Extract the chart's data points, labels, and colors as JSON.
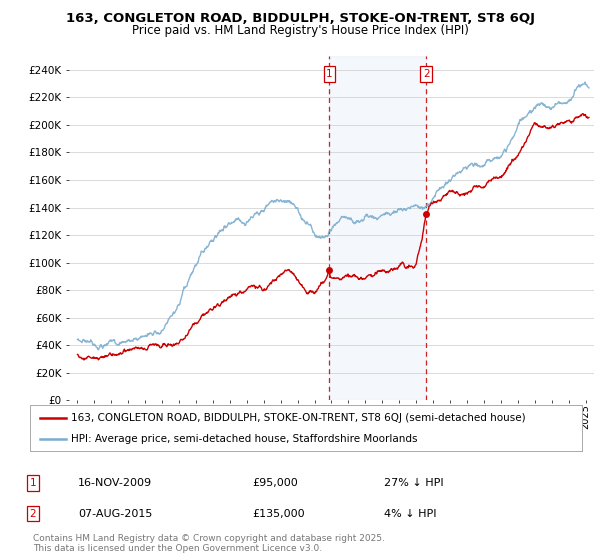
{
  "title1": "163, CONGLETON ROAD, BIDDULPH, STOKE-ON-TRENT, ST8 6QJ",
  "title2": "Price paid vs. HM Land Registry's House Price Index (HPI)",
  "legend1": "163, CONGLETON ROAD, BIDDULPH, STOKE-ON-TRENT, ST8 6QJ (semi-detached house)",
  "legend2": "HPI: Average price, semi-detached house, Staffordshire Moorlands",
  "annotation1_box": "1",
  "annotation1_date": "16-NOV-2009",
  "annotation1_price": "£95,000",
  "annotation1_hpi": "27% ↓ HPI",
  "annotation2_box": "2",
  "annotation2_date": "07-AUG-2015",
  "annotation2_price": "£135,000",
  "annotation2_hpi": "4% ↓ HPI",
  "footer": "Contains HM Land Registry data © Crown copyright and database right 2025.\nThis data is licensed under the Open Government Licence v3.0.",
  "red_color": "#cc0000",
  "blue_color": "#7aadcf",
  "vline1_x": 2009.88,
  "vline2_x": 2015.59,
  "sale1_x": 2009.88,
  "sale1_y": 95000,
  "sale2_x": 2015.59,
  "sale2_y": 135000,
  "ylim": [
    0,
    250000
  ],
  "xlim": [
    1994.5,
    2025.5
  ],
  "yticks": [
    0,
    20000,
    40000,
    60000,
    80000,
    100000,
    120000,
    140000,
    160000,
    180000,
    200000,
    220000,
    240000
  ],
  "ytick_labels": [
    "£0",
    "£20K",
    "£40K",
    "£60K",
    "£80K",
    "£100K",
    "£120K",
    "£140K",
    "£160K",
    "£180K",
    "£200K",
    "£220K",
    "£240K"
  ],
  "hpi_knots": [
    [
      1995.0,
      44000
    ],
    [
      1996.0,
      46000
    ],
    [
      1997.0,
      48000
    ],
    [
      1998.0,
      50000
    ],
    [
      1999.0,
      54000
    ],
    [
      2000.0,
      60000
    ],
    [
      2001.0,
      72000
    ],
    [
      2002.0,
      92000
    ],
    [
      2003.0,
      112000
    ],
    [
      2004.0,
      128000
    ],
    [
      2005.0,
      132000
    ],
    [
      2006.0,
      138000
    ],
    [
      2007.0,
      144000
    ],
    [
      2007.5,
      143000
    ],
    [
      2008.0,
      138000
    ],
    [
      2008.5,
      128000
    ],
    [
      2009.0,
      122000
    ],
    [
      2009.5,
      120000
    ],
    [
      2010.0,
      123000
    ],
    [
      2010.5,
      127000
    ],
    [
      2011.0,
      125000
    ],
    [
      2011.5,
      123000
    ],
    [
      2012.0,
      122000
    ],
    [
      2012.5,
      124000
    ],
    [
      2013.0,
      126000
    ],
    [
      2013.5,
      128000
    ],
    [
      2014.0,
      132000
    ],
    [
      2014.5,
      134000
    ],
    [
      2015.0,
      135000
    ],
    [
      2015.5,
      136000
    ],
    [
      2016.0,
      145000
    ],
    [
      2016.5,
      152000
    ],
    [
      2017.0,
      158000
    ],
    [
      2017.5,
      162000
    ],
    [
      2018.0,
      163000
    ],
    [
      2018.5,
      163000
    ],
    [
      2019.0,
      162000
    ],
    [
      2019.5,
      164000
    ],
    [
      2020.0,
      168000
    ],
    [
      2020.5,
      178000
    ],
    [
      2021.0,
      188000
    ],
    [
      2021.5,
      195000
    ],
    [
      2022.0,
      205000
    ],
    [
      2022.5,
      210000
    ],
    [
      2023.0,
      208000
    ],
    [
      2023.5,
      212000
    ],
    [
      2024.0,
      218000
    ],
    [
      2024.5,
      228000
    ],
    [
      2025.0,
      232000
    ]
  ],
  "prop_knots": [
    [
      1995.0,
      32000
    ],
    [
      1996.0,
      31000
    ],
    [
      1997.0,
      32000
    ],
    [
      1998.0,
      34000
    ],
    [
      1999.0,
      35000
    ],
    [
      2000.0,
      38000
    ],
    [
      2001.0,
      44000
    ],
    [
      2002.0,
      55000
    ],
    [
      2003.0,
      68000
    ],
    [
      2004.0,
      78000
    ],
    [
      2005.0,
      82000
    ],
    [
      2006.0,
      88000
    ],
    [
      2007.0,
      100000
    ],
    [
      2007.25,
      103000
    ],
    [
      2007.5,
      102000
    ],
    [
      2008.0,
      96000
    ],
    [
      2008.5,
      88000
    ],
    [
      2009.0,
      84000
    ],
    [
      2009.88,
      95000
    ],
    [
      2010.0,
      90000
    ],
    [
      2010.5,
      88000
    ],
    [
      2011.0,
      87000
    ],
    [
      2011.5,
      88000
    ],
    [
      2012.0,
      87000
    ],
    [
      2012.5,
      89000
    ],
    [
      2013.0,
      91000
    ],
    [
      2013.5,
      93000
    ],
    [
      2014.0,
      95000
    ],
    [
      2014.5,
      97000
    ],
    [
      2015.0,
      100000
    ],
    [
      2015.59,
      135000
    ],
    [
      2016.0,
      140000
    ],
    [
      2016.5,
      145000
    ],
    [
      2017.0,
      152000
    ],
    [
      2017.5,
      155000
    ],
    [
      2018.0,
      158000
    ],
    [
      2018.5,
      160000
    ],
    [
      2019.0,
      158000
    ],
    [
      2019.5,
      162000
    ],
    [
      2020.0,
      165000
    ],
    [
      2020.5,
      172000
    ],
    [
      2021.0,
      180000
    ],
    [
      2021.5,
      190000
    ],
    [
      2022.0,
      200000
    ],
    [
      2022.5,
      198000
    ],
    [
      2023.0,
      195000
    ],
    [
      2023.5,
      198000
    ],
    [
      2024.0,
      202000
    ],
    [
      2024.5,
      205000
    ],
    [
      2025.0,
      208000
    ]
  ]
}
